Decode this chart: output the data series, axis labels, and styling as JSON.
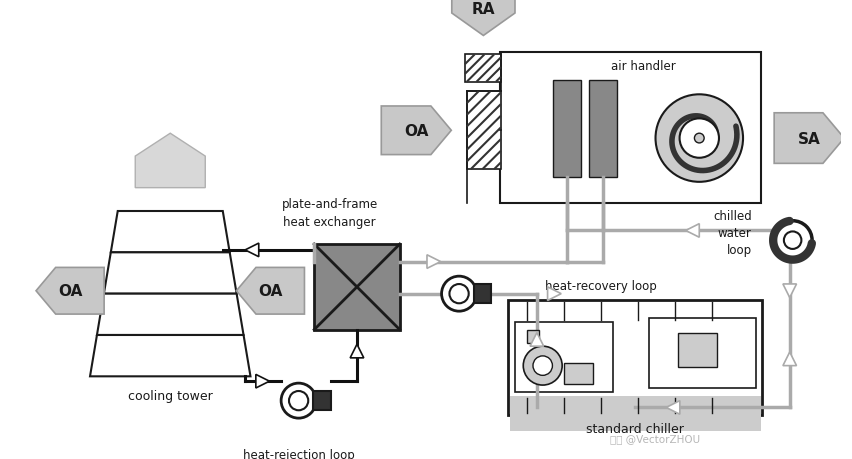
{
  "bg_color": "#ffffff",
  "lc": "#1a1a1a",
  "gc": "#888888",
  "lgc": "#cccccc",
  "dgc": "#333333",
  "agc": "#c8c8c8",
  "pipe_dark": "#111111",
  "pipe_gray": "#aaaaaa",
  "labels": {
    "RA": "RA",
    "OA_ah": "OA",
    "SA": "SA",
    "air_handler": "air handler",
    "OA_left": "OA",
    "OA_right": "OA",
    "cooling_tower": "cooling tower",
    "plate_frame": "plate-and-frame\nheat exchanger",
    "heat_recovery": "heat-recovery loop",
    "heat_rejection": "heat-rejection loop",
    "chilled_water": "chilled\nwater\nloop",
    "standard_chiller": "standard chiller"
  },
  "watermark": "知乎 @VectorZHOU"
}
